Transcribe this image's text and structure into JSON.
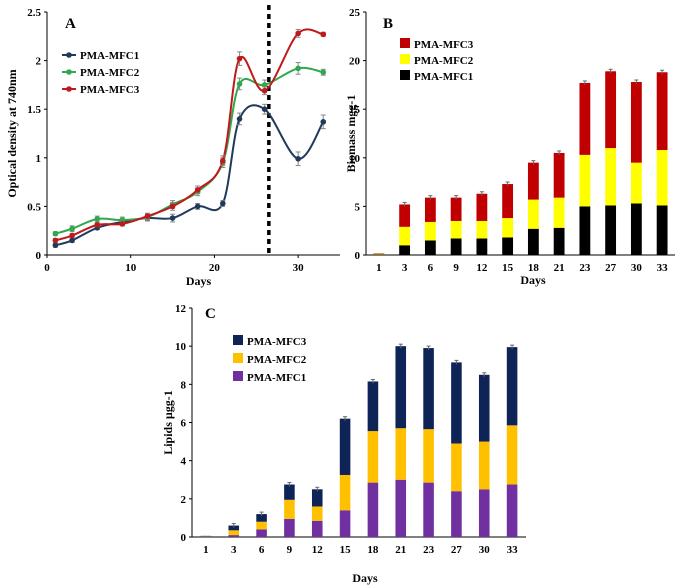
{
  "chart_data": [
    {
      "id": "A",
      "panel_label": "A",
      "type": "line",
      "xlabel": "Days",
      "ylabel": "Optical density at 740nm",
      "xlim": [
        0,
        35
      ],
      "ylim": [
        0,
        2.5
      ],
      "xticks": [
        "0",
        "10",
        "20",
        "30"
      ],
      "yticks": [
        "0",
        "0.5",
        "1",
        "1.5",
        "2",
        "2.5"
      ],
      "divider_x": 26.5,
      "x": [
        1,
        3,
        6,
        9,
        12,
        15,
        18,
        21,
        23,
        26,
        30,
        33
      ],
      "series": [
        {
          "name": "PMA-MFC1",
          "color": "#1f3a5a",
          "values": [
            0.1,
            0.15,
            0.28,
            0.34,
            0.38,
            0.38,
            0.5,
            0.53,
            1.4,
            1.5,
            0.99,
            1.37
          ],
          "errors": [
            0.02,
            0.02,
            0.02,
            0.03,
            0.03,
            0.04,
            0.03,
            0.03,
            0.06,
            0.05,
            0.07,
            0.07
          ]
        },
        {
          "name": "PMA-MFC2",
          "color": "#2fa84f",
          "values": [
            0.22,
            0.27,
            0.37,
            0.36,
            0.39,
            0.52,
            0.65,
            0.95,
            1.76,
            1.75,
            1.92,
            1.88
          ],
          "errors": [
            0.02,
            0.03,
            0.03,
            0.03,
            0.03,
            0.04,
            0.04,
            0.05,
            0.06,
            0.05,
            0.06,
            0.03
          ]
        },
        {
          "name": "PMA-MFC3",
          "color": "#c0191b",
          "values": [
            0.15,
            0.2,
            0.31,
            0.32,
            0.4,
            0.5,
            0.67,
            0.97,
            2.02,
            1.69,
            2.28,
            2.27
          ],
          "errors": [
            0.02,
            0.02,
            0.02,
            0.02,
            0.03,
            0.04,
            0.04,
            0.05,
            0.07,
            0.04,
            0.04,
            0.02
          ]
        }
      ]
    },
    {
      "id": "B",
      "panel_label": "B",
      "type": "bar",
      "stacked": true,
      "xlabel": "Days",
      "ylabel": "Biomass mgg-1",
      "ylim": [
        0,
        25
      ],
      "yticks": [
        "0",
        "5",
        "10",
        "15",
        "20",
        "25"
      ],
      "categories": [
        "1",
        "3",
        "6",
        "9",
        "12",
        "15",
        "18",
        "21",
        "23",
        "27",
        "30",
        "33"
      ],
      "series": [
        {
          "name": "PMA-MFC1",
          "color": "#000000",
          "values": [
            0.05,
            1.0,
            1.5,
            1.7,
            1.7,
            1.8,
            2.7,
            2.8,
            5.0,
            5.1,
            5.3,
            5.1
          ]
        },
        {
          "name": "PMA-MFC2",
          "color": "#ffff00",
          "values": [
            0.05,
            1.9,
            1.9,
            1.8,
            1.8,
            2.0,
            3.0,
            3.1,
            5.3,
            5.9,
            4.2,
            5.7
          ]
        },
        {
          "name": "PMA-MFC3",
          "color": "#c00000",
          "values": [
            0.05,
            2.3,
            2.5,
            2.4,
            2.8,
            3.5,
            3.8,
            4.6,
            7.4,
            7.9,
            8.3,
            8.0
          ]
        }
      ]
    },
    {
      "id": "C",
      "panel_label": "C",
      "type": "bar",
      "stacked": true,
      "xlabel": "Days",
      "ylabel": "Lipids µgg-1",
      "ylim": [
        0,
        12
      ],
      "yticks": [
        "0",
        "2",
        "4",
        "6",
        "8",
        "10",
        "12"
      ],
      "categories": [
        "1",
        "3",
        "6",
        "9",
        "12",
        "15",
        "18",
        "21",
        "23",
        "27",
        "30",
        "33"
      ],
      "series": [
        {
          "name": "PMA-MFC1",
          "color": "#7030a0",
          "values": [
            0.02,
            0.1,
            0.4,
            0.95,
            0.85,
            1.4,
            2.85,
            3.0,
            2.85,
            2.4,
            2.5,
            2.75
          ]
        },
        {
          "name": "PMA-MFC2",
          "color": "#ffc000",
          "values": [
            0.02,
            0.25,
            0.4,
            1.0,
            0.75,
            1.85,
            2.7,
            2.7,
            2.8,
            2.5,
            2.5,
            3.1
          ]
        },
        {
          "name": "PMA-MFC3",
          "color": "#0f2456",
          "values": [
            0.02,
            0.25,
            0.4,
            0.8,
            0.9,
            2.95,
            2.6,
            4.3,
            4.25,
            4.25,
            3.5,
            4.1
          ]
        }
      ]
    }
  ]
}
